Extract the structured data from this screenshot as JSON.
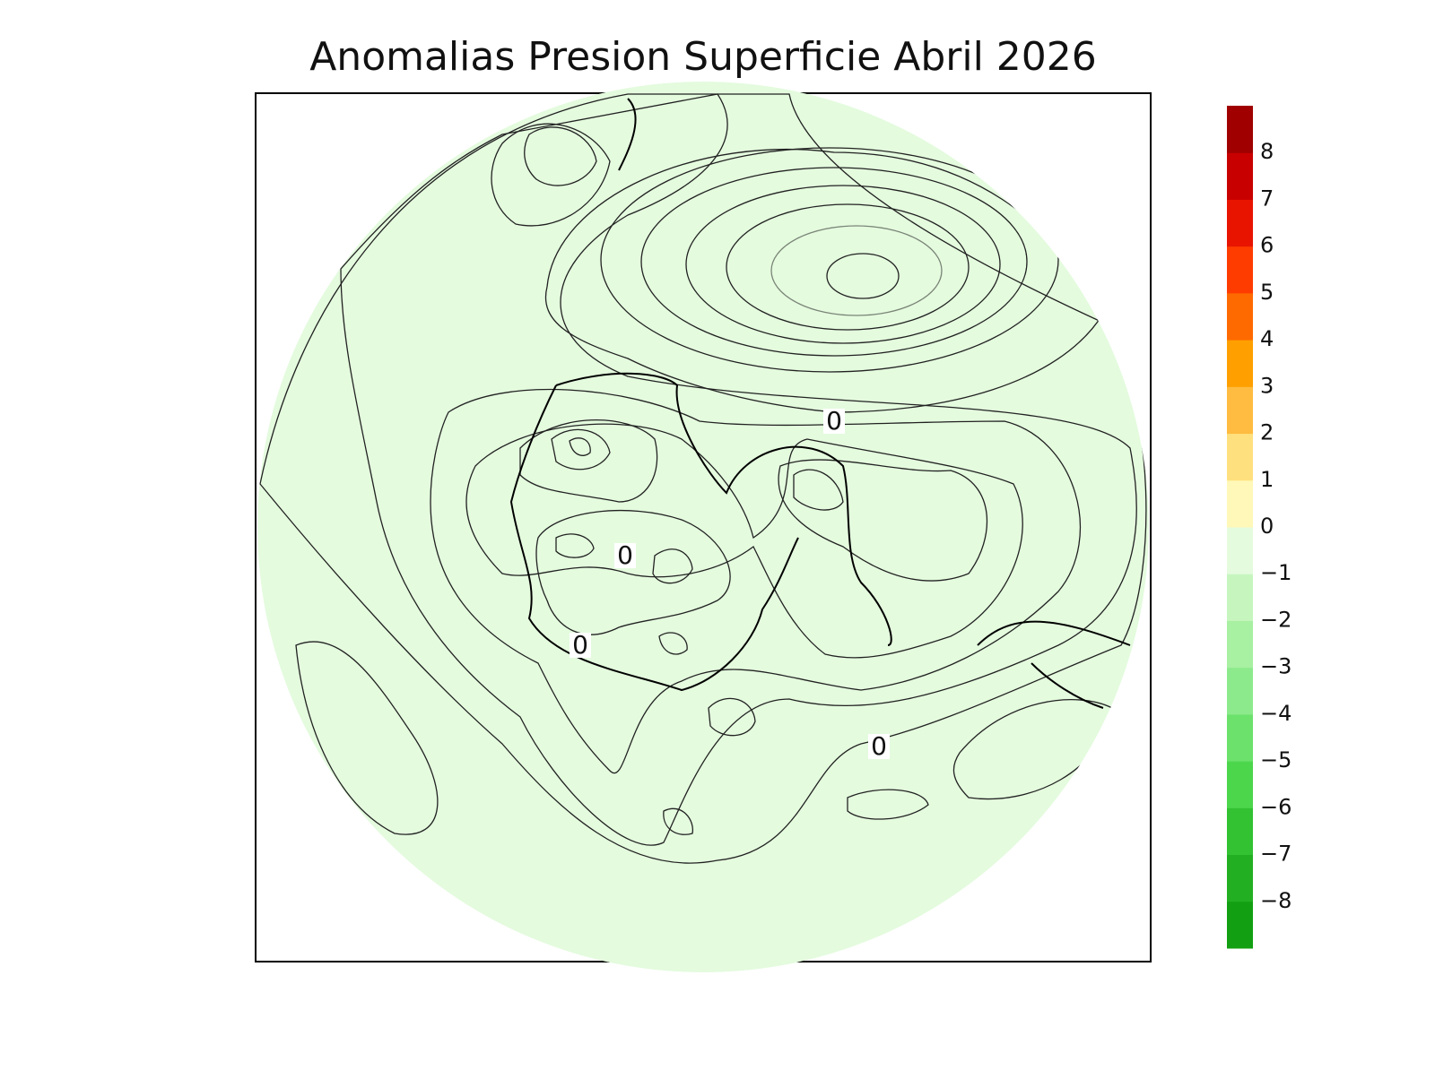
{
  "chart_data": {
    "type": "contour-map",
    "title": "Anomalias Presion Superficie Abril 2026",
    "contour_labels": [
      "0",
      "0",
      "0",
      "0"
    ],
    "colorbar": {
      "ylim": [
        -9,
        9
      ],
      "ticks": [
        {
          "value": 8,
          "label": "8"
        },
        {
          "value": 7,
          "label": "7"
        },
        {
          "value": 6,
          "label": "6"
        },
        {
          "value": 5,
          "label": "5"
        },
        {
          "value": 4,
          "label": "4"
        },
        {
          "value": 3,
          "label": "3"
        },
        {
          "value": 2,
          "label": "2"
        },
        {
          "value": 1,
          "label": "1"
        },
        {
          "value": 0,
          "label": "0"
        },
        {
          "value": -1,
          "label": "−1"
        },
        {
          "value": -2,
          "label": "−2"
        },
        {
          "value": -3,
          "label": "−3"
        },
        {
          "value": -4,
          "label": "−4"
        },
        {
          "value": -5,
          "label": "−5"
        },
        {
          "value": -6,
          "label": "−6"
        },
        {
          "value": -7,
          "label": "−7"
        },
        {
          "value": -8,
          "label": "−8"
        }
      ],
      "colors": [
        "#12a012",
        "#22b022",
        "#32c232",
        "#4cd64c",
        "#6ce26c",
        "#8cea8c",
        "#a8f0a2",
        "#c6f6be",
        "#e4fbde",
        "#fff8b8",
        "#ffe07e",
        "#ffbc40",
        "#ffa000",
        "#ff6a00",
        "#ff3c00",
        "#e81400",
        "#c80000",
        "#a00000"
      ]
    }
  }
}
